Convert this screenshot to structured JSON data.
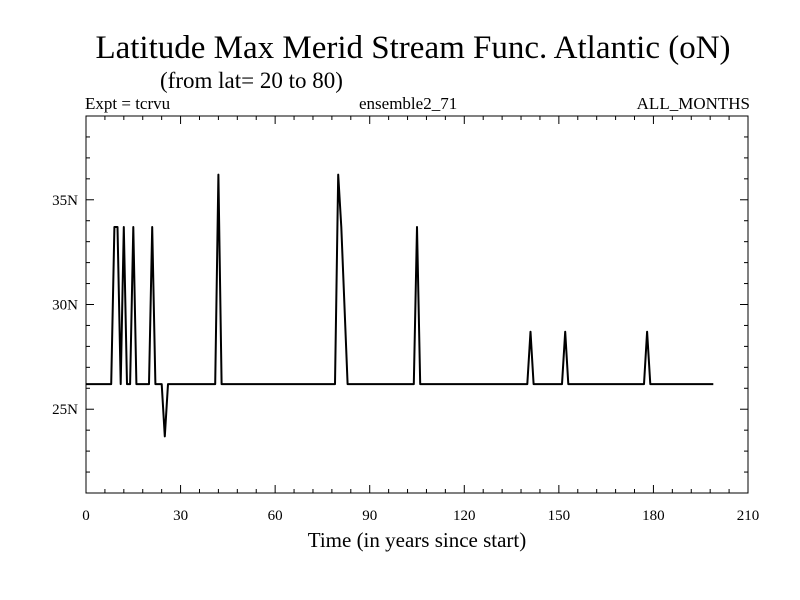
{
  "header": {
    "left": "Expt = tcrvu",
    "center": "ensemble2_71",
    "right": "ALL_MONTHS"
  },
  "chart_data": {
    "type": "line",
    "title": "Latitude Max Merid Stream Func. Atlantic (oN)",
    "subtitle": "(from lat= 20 to 80)",
    "xlabel": "Time (in years since start)",
    "ylabel": "",
    "xlim": [
      0,
      210
    ],
    "ylim": [
      21,
      39
    ],
    "x_ticks": [
      0,
      30,
      60,
      90,
      120,
      150,
      180,
      210
    ],
    "x_tick_labels": [
      "0",
      "30",
      "60",
      "90",
      "120",
      "150",
      "180",
      "210"
    ],
    "y_ticks": [
      25,
      30,
      35
    ],
    "y_tick_labels": [
      "25N",
      "30N",
      "35N"
    ],
    "grid": false,
    "line_color": "#000000",
    "series": [
      {
        "x": [
          0,
          8,
          9,
          10,
          11,
          12,
          13,
          14,
          15,
          16,
          17,
          20,
          21,
          22,
          23,
          24,
          25,
          26,
          27,
          41,
          42,
          43,
          44,
          79,
          80,
          81,
          83,
          104,
          105,
          106,
          107,
          140,
          141,
          142,
          151,
          152,
          153,
          177,
          178,
          179,
          199
        ],
        "y": [
          26.2,
          26.2,
          33.7,
          33.7,
          26.2,
          33.7,
          26.2,
          26.2,
          33.7,
          26.2,
          26.2,
          26.2,
          33.7,
          26.2,
          26.2,
          26.2,
          23.7,
          26.2,
          26.2,
          26.2,
          36.2,
          26.2,
          26.2,
          26.2,
          36.2,
          33.7,
          26.2,
          26.2,
          33.7,
          26.2,
          26.2,
          26.2,
          28.7,
          26.2,
          26.2,
          28.7,
          26.2,
          26.2,
          28.7,
          26.2,
          26.2
        ]
      }
    ]
  }
}
